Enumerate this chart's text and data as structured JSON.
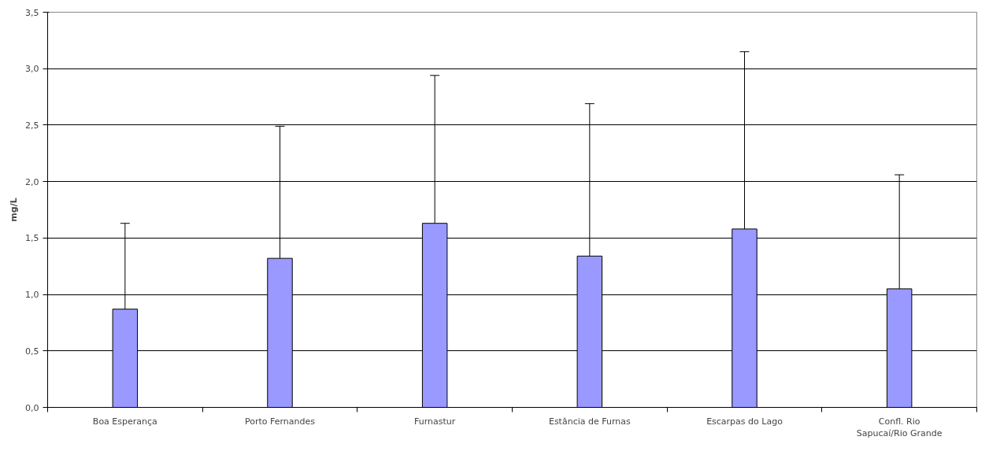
{
  "chart_data": {
    "type": "bar",
    "ylabel": "mg/L",
    "categories": [
      "Boa Esperança",
      "Porto Fernandes",
      "Furnastur",
      "Estância de Furnas",
      "Escarpas do Lago",
      "Confl. Rio\nSapucaí/Rio Grande"
    ],
    "values": [
      0.87,
      1.32,
      1.63,
      1.34,
      1.58,
      1.05
    ],
    "errors": [
      [
        0.87,
        1.63
      ],
      [
        1.32,
        2.49
      ],
      [
        1.63,
        2.94
      ],
      [
        1.34,
        2.69
      ],
      [
        1.58,
        3.15
      ],
      [
        1.05,
        2.06
      ]
    ],
    "color": "#9999ff",
    "ylim": [
      0,
      3.5
    ],
    "yticks": [
      {
        "value": 0,
        "label": "0,0"
      },
      {
        "value": 0.5,
        "label": "0,5"
      },
      {
        "value": 1,
        "label": "1,0"
      },
      {
        "value": 1.5,
        "label": "1,5"
      },
      {
        "value": 2,
        "label": "2,0"
      },
      {
        "value": 2.5,
        "label": "2,5"
      },
      {
        "value": 3,
        "label": "3,0"
      },
      {
        "value": 3.5,
        "label": "3,5"
      }
    ],
    "grid": "y"
  }
}
